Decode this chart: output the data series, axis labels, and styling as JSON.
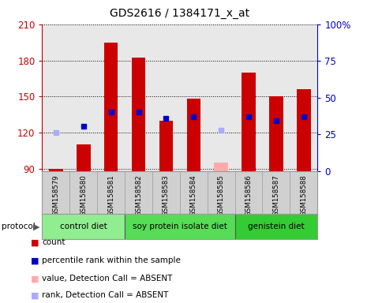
{
  "title": "GDS2616 / 1384171_x_at",
  "samples": [
    "GSM158579",
    "GSM158580",
    "GSM158581",
    "GSM158582",
    "GSM158583",
    "GSM158584",
    "GSM158585",
    "GSM158586",
    "GSM158587",
    "GSM158588"
  ],
  "count_values": [
    90,
    110,
    195,
    182,
    130,
    148,
    null,
    170,
    150,
    156
  ],
  "rank_values": [
    null,
    125,
    137,
    137,
    132,
    133,
    null,
    133,
    130,
    133
  ],
  "absent_count_values": [
    null,
    null,
    null,
    null,
    null,
    null,
    95,
    null,
    null,
    null
  ],
  "absent_rank_values": [
    120,
    null,
    null,
    null,
    null,
    null,
    122,
    null,
    null,
    null
  ],
  "ylim_left": [
    88,
    210
  ],
  "ylim_right": [
    0,
    100
  ],
  "yticks_left": [
    90,
    120,
    150,
    180,
    210
  ],
  "yticks_right": [
    0,
    25,
    50,
    75,
    100
  ],
  "groups": [
    {
      "label": "control diet",
      "start": 0,
      "end": 3,
      "color": "#90ee90"
    },
    {
      "label": "soy protein isolate diet",
      "start": 3,
      "end": 7,
      "color": "#55dd55"
    },
    {
      "label": "genistein diet",
      "start": 7,
      "end": 10,
      "color": "#33cc33"
    }
  ],
  "bar_color": "#cc0000",
  "rank_color": "#0000cc",
  "absent_bar_color": "#ffaaaa",
  "absent_rank_color": "#aaaaff",
  "plot_bg_color": "#e8e8e8",
  "left_axis_color": "#cc0000",
  "right_axis_color": "#0000cc",
  "bar_width": 0.5,
  "rank_marker_size": 5,
  "sample_bg_color": "#d0d0d0"
}
